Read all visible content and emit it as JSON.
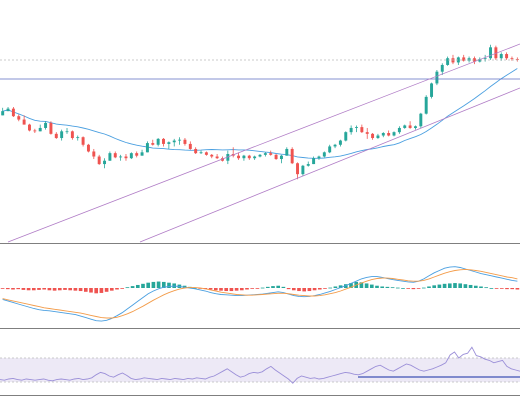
{
  "colors": {
    "up": "#26a69a",
    "down": "#ef5350",
    "ma": "#4a9fe0",
    "channel": "#b07cc6",
    "h_line": "#5c6bc0",
    "macd": "#4a9fe0",
    "signal": "#f39c4a",
    "rsi": "#9b8fd8",
    "rsi_level": "#3f51b5",
    "rsi_band": "#ede9f6",
    "divider": "#555555",
    "dotted": "#bbbbbb"
  },
  "chart_data": [
    {
      "type": "candlestick",
      "panel": "price",
      "ylim": [
        0,
        100
      ],
      "candles": [
        [
          48,
          52.5,
          48,
          50.5
        ],
        [
          50.5,
          53,
          50.5,
          52
        ],
        [
          52,
          53,
          47,
          47.5
        ],
        [
          47.5,
          48.5,
          44.5,
          45.5
        ],
        [
          45.5,
          48,
          42.5,
          42.5
        ],
        [
          42.5,
          43,
          38.5,
          39
        ],
        [
          39,
          40,
          37.5,
          38.5
        ],
        [
          38.5,
          42.5,
          38.5,
          40.5
        ],
        [
          40.5,
          44.5,
          39.5,
          43.5
        ],
        [
          43.5,
          44.5,
          36.5,
          37
        ],
        [
          37,
          38,
          34,
          34.5
        ],
        [
          34.5,
          39.5,
          33,
          38.5
        ],
        [
          38.5,
          40.5,
          37,
          38.5
        ],
        [
          38.5,
          39,
          33.5,
          34.5
        ],
        [
          34.5,
          36,
          33,
          35
        ],
        [
          35,
          35.5,
          29.5,
          30.5
        ],
        [
          30.5,
          31,
          26,
          26.5
        ],
        [
          26.5,
          28,
          22,
          23.5
        ],
        [
          23.5,
          24.5,
          18.5,
          19
        ],
        [
          19,
          22.5,
          16.5,
          21
        ],
        [
          21,
          26.5,
          21,
          25.5
        ],
        [
          25.5,
          26.5,
          22.5,
          23
        ],
        [
          23,
          24.5,
          21,
          23.5
        ],
        [
          23.5,
          25,
          21,
          22.5
        ],
        [
          22.5,
          26,
          22,
          25.5
        ],
        [
          25.5,
          26.5,
          23,
          24
        ],
        [
          24,
          27.5,
          24,
          26
        ],
        [
          26,
          32.5,
          26,
          31.5
        ],
        [
          31.5,
          33.5,
          30,
          30.5
        ],
        [
          30.5,
          34.5,
          29.5,
          34
        ],
        [
          34,
          34.5,
          29.5,
          31
        ],
        [
          31,
          32.5,
          28,
          32
        ],
        [
          32,
          34,
          29.5,
          33
        ],
        [
          33,
          35,
          30.5,
          33.5
        ],
        [
          33.5,
          34.5,
          30,
          31
        ],
        [
          31,
          32.5,
          27.5,
          28
        ],
        [
          28,
          29,
          25,
          25.5
        ],
        [
          25.5,
          27,
          25,
          26
        ],
        [
          26,
          26.5,
          24,
          24.5
        ],
        [
          24.5,
          25,
          22.5,
          23.5
        ],
        [
          23.5,
          25,
          22,
          22.5
        ],
        [
          22.5,
          23.5,
          20.5,
          21
        ],
        [
          21,
          27,
          19,
          25
        ],
        [
          25,
          29,
          23,
          24
        ],
        [
          24,
          26,
          21.5,
          22.5
        ],
        [
          22.5,
          24.5,
          21,
          24
        ],
        [
          24,
          24.5,
          21.5,
          22.5
        ],
        [
          22.5,
          24,
          21.5,
          23.5
        ],
        [
          23.5,
          25,
          23,
          24.5
        ],
        [
          24.5,
          26,
          23.5,
          25.5
        ],
        [
          25.5,
          27,
          24,
          24.5
        ],
        [
          24.5,
          25,
          21.5,
          22
        ],
        [
          22,
          24.5,
          19.5,
          24
        ],
        [
          24,
          29,
          24,
          28
        ],
        [
          28,
          29,
          19,
          19.5
        ],
        [
          19.5,
          20,
          10,
          13
        ],
        [
          13,
          18.5,
          12,
          18
        ],
        [
          18,
          20.5,
          17.5,
          19
        ],
        [
          19,
          23.5,
          19,
          22.5
        ],
        [
          22.5,
          24,
          21.5,
          23.5
        ],
        [
          23.5,
          26.5,
          23,
          26
        ],
        [
          26,
          30.5,
          25.5,
          29.5
        ],
        [
          29.5,
          31,
          28.5,
          30.5
        ],
        [
          30.5,
          33.5,
          29.5,
          33
        ],
        [
          33,
          38.5,
          32.5,
          38
        ],
        [
          38,
          42,
          36.5,
          40.5
        ],
        [
          40.5,
          42,
          38,
          41
        ],
        [
          41,
          42.5,
          37.5,
          38
        ],
        [
          38,
          40.5,
          34,
          37
        ],
        [
          37,
          37.5,
          33.5,
          34.5
        ],
        [
          34.5,
          37,
          34,
          36
        ],
        [
          36,
          38,
          35,
          37.5
        ],
        [
          37.5,
          39,
          35.5,
          36
        ],
        [
          36,
          38.5,
          35.5,
          38
        ],
        [
          38,
          41.5,
          37,
          40.5
        ],
        [
          40.5,
          42.5,
          40,
          42
        ],
        [
          42,
          44.5,
          40,
          40.5
        ],
        [
          40.5,
          42,
          39.5,
          41.5
        ],
        [
          41.5,
          49.5,
          40.5,
          49
        ],
        [
          49,
          60,
          48.5,
          59
        ],
        [
          59,
          67.5,
          58,
          67
        ],
        [
          67,
          75,
          66,
          74
        ],
        [
          74,
          79,
          72,
          78
        ],
        [
          78,
          83,
          77.5,
          82
        ],
        [
          82,
          84,
          78.5,
          79.5
        ],
        [
          79.5,
          83,
          78,
          82.5
        ],
        [
          82.5,
          84,
          80,
          80.5
        ],
        [
          80.5,
          83,
          79.5,
          82
        ],
        [
          82,
          83,
          78.5,
          80
        ],
        [
          80,
          82.5,
          79.5,
          81.5
        ],
        [
          81.5,
          84,
          80,
          82
        ],
        [
          82,
          90,
          81,
          88.5
        ],
        [
          88.5,
          89.5,
          81,
          82
        ],
        [
          82,
          85.5,
          80.5,
          84.5
        ],
        [
          84.5,
          85.5,
          81,
          82
        ],
        [
          82,
          83,
          80.5,
          81.5
        ],
        [
          81.5,
          82.5,
          80,
          81
        ]
      ]
    },
    {
      "type": "bar+line",
      "panel": "macd",
      "ylim": [
        -100,
        100
      ],
      "histogram": [
        -2,
        -3,
        -4,
        -3,
        -5,
        -6,
        -6,
        -5,
        -4,
        -6,
        -7,
        -6,
        -5,
        -6,
        -7,
        -8,
        -10,
        -12,
        -14,
        -13,
        -10,
        -7,
        -4,
        -1,
        2,
        5,
        8,
        11,
        14,
        16,
        17,
        16,
        14,
        12,
        9,
        6,
        3,
        1,
        -1,
        -3,
        -4,
        -6,
        -7,
        -8,
        -8,
        -7,
        -6,
        -4,
        -2,
        -1,
        1,
        3,
        5,
        6,
        3,
        -3,
        -6,
        -8,
        -9,
        -8,
        -6,
        -4,
        -2,
        1,
        4,
        7,
        10,
        13,
        16,
        15,
        12,
        9,
        6,
        4,
        3,
        2,
        1,
        0,
        -2,
        -3,
        -2,
        1,
        4,
        7,
        9,
        11,
        12,
        13,
        12,
        10,
        8,
        6,
        4,
        2,
        0,
        -1,
        -2,
        -3,
        -3,
        -4
      ],
      "series": [
        {
          "values": [
            -30,
            -34,
            -38,
            -42,
            -46,
            -50,
            -54,
            -57,
            -59,
            -60,
            -62,
            -64,
            -66,
            -68,
            -70,
            -74,
            -78,
            -82,
            -86,
            -87,
            -85,
            -80,
            -73,
            -65,
            -55,
            -45,
            -35,
            -25,
            -15,
            -8,
            -2,
            2,
            4,
            5,
            4,
            2,
            0,
            -2,
            -5,
            -8,
            -12,
            -15,
            -17,
            -18,
            -19,
            -20,
            -20,
            -19,
            -18,
            -17,
            -16,
            -14,
            -12,
            -10,
            -12,
            -16,
            -20,
            -22,
            -23,
            -22,
            -20,
            -17,
            -13,
            -9,
            -4,
            1,
            6,
            12,
            18,
            24,
            28,
            30,
            30,
            28,
            25,
            22,
            20,
            18,
            16,
            15,
            18,
            24,
            32,
            40,
            46,
            52,
            55,
            56,
            54,
            50,
            46,
            42,
            38,
            35,
            32,
            29,
            26,
            23,
            20,
            18
          ]
        },
        {
          "values": [
            -28,
            -31,
            -34,
            -37,
            -40,
            -43,
            -46,
            -49,
            -52,
            -54,
            -56,
            -58,
            -60,
            -62,
            -64,
            -66,
            -69,
            -72,
            -75,
            -78,
            -79,
            -79,
            -77,
            -73,
            -68,
            -62,
            -55,
            -48,
            -40,
            -32,
            -25,
            -18,
            -12,
            -7,
            -3,
            0,
            1,
            1,
            0,
            -2,
            -5,
            -8,
            -11,
            -13,
            -15,
            -17,
            -18,
            -19,
            -19,
            -18,
            -17,
            -16,
            -15,
            -14,
            -14,
            -15,
            -17,
            -19,
            -20,
            -21,
            -21,
            -20,
            -18,
            -15,
            -12,
            -8,
            -3,
            2,
            8,
            13,
            18,
            22,
            25,
            26,
            26,
            25,
            23,
            21,
            19,
            18,
            18,
            20,
            24,
            29,
            34,
            39,
            43,
            46,
            48,
            49,
            48,
            46,
            44,
            41,
            38,
            35,
            32,
            29,
            27,
            24
          ]
        }
      ]
    },
    {
      "type": "line",
      "panel": "rsi",
      "ylim": [
        0,
        100
      ],
      "level": 30,
      "band": [
        30,
        70
      ],
      "values": [
        34,
        33,
        35,
        36,
        34,
        33,
        35,
        34,
        33,
        34,
        35,
        33,
        32,
        34,
        35,
        34,
        33,
        35,
        36,
        34,
        35,
        37,
        42,
        46,
        44,
        40,
        38,
        42,
        45,
        41,
        36,
        34,
        35,
        37,
        36,
        35,
        34,
        36,
        35,
        34,
        36,
        35,
        34,
        36,
        35,
        37,
        36,
        35,
        38,
        40,
        44,
        48,
        52,
        47,
        42,
        38,
        40,
        44,
        46,
        45,
        47,
        52,
        56,
        50,
        45,
        40,
        35,
        28,
        36,
        40,
        38,
        36,
        37,
        35,
        36,
        38,
        40,
        42,
        44,
        46,
        45,
        43,
        42,
        44,
        48,
        52,
        56,
        58,
        54,
        50,
        48,
        52,
        56,
        60,
        58,
        54,
        50,
        48,
        50,
        52,
        55,
        58,
        62,
        75,
        80,
        70,
        76,
        78,
        88,
        74,
        72,
        68,
        66,
        62,
        64,
        66,
        56,
        52,
        50,
        48
      ]
    }
  ]
}
